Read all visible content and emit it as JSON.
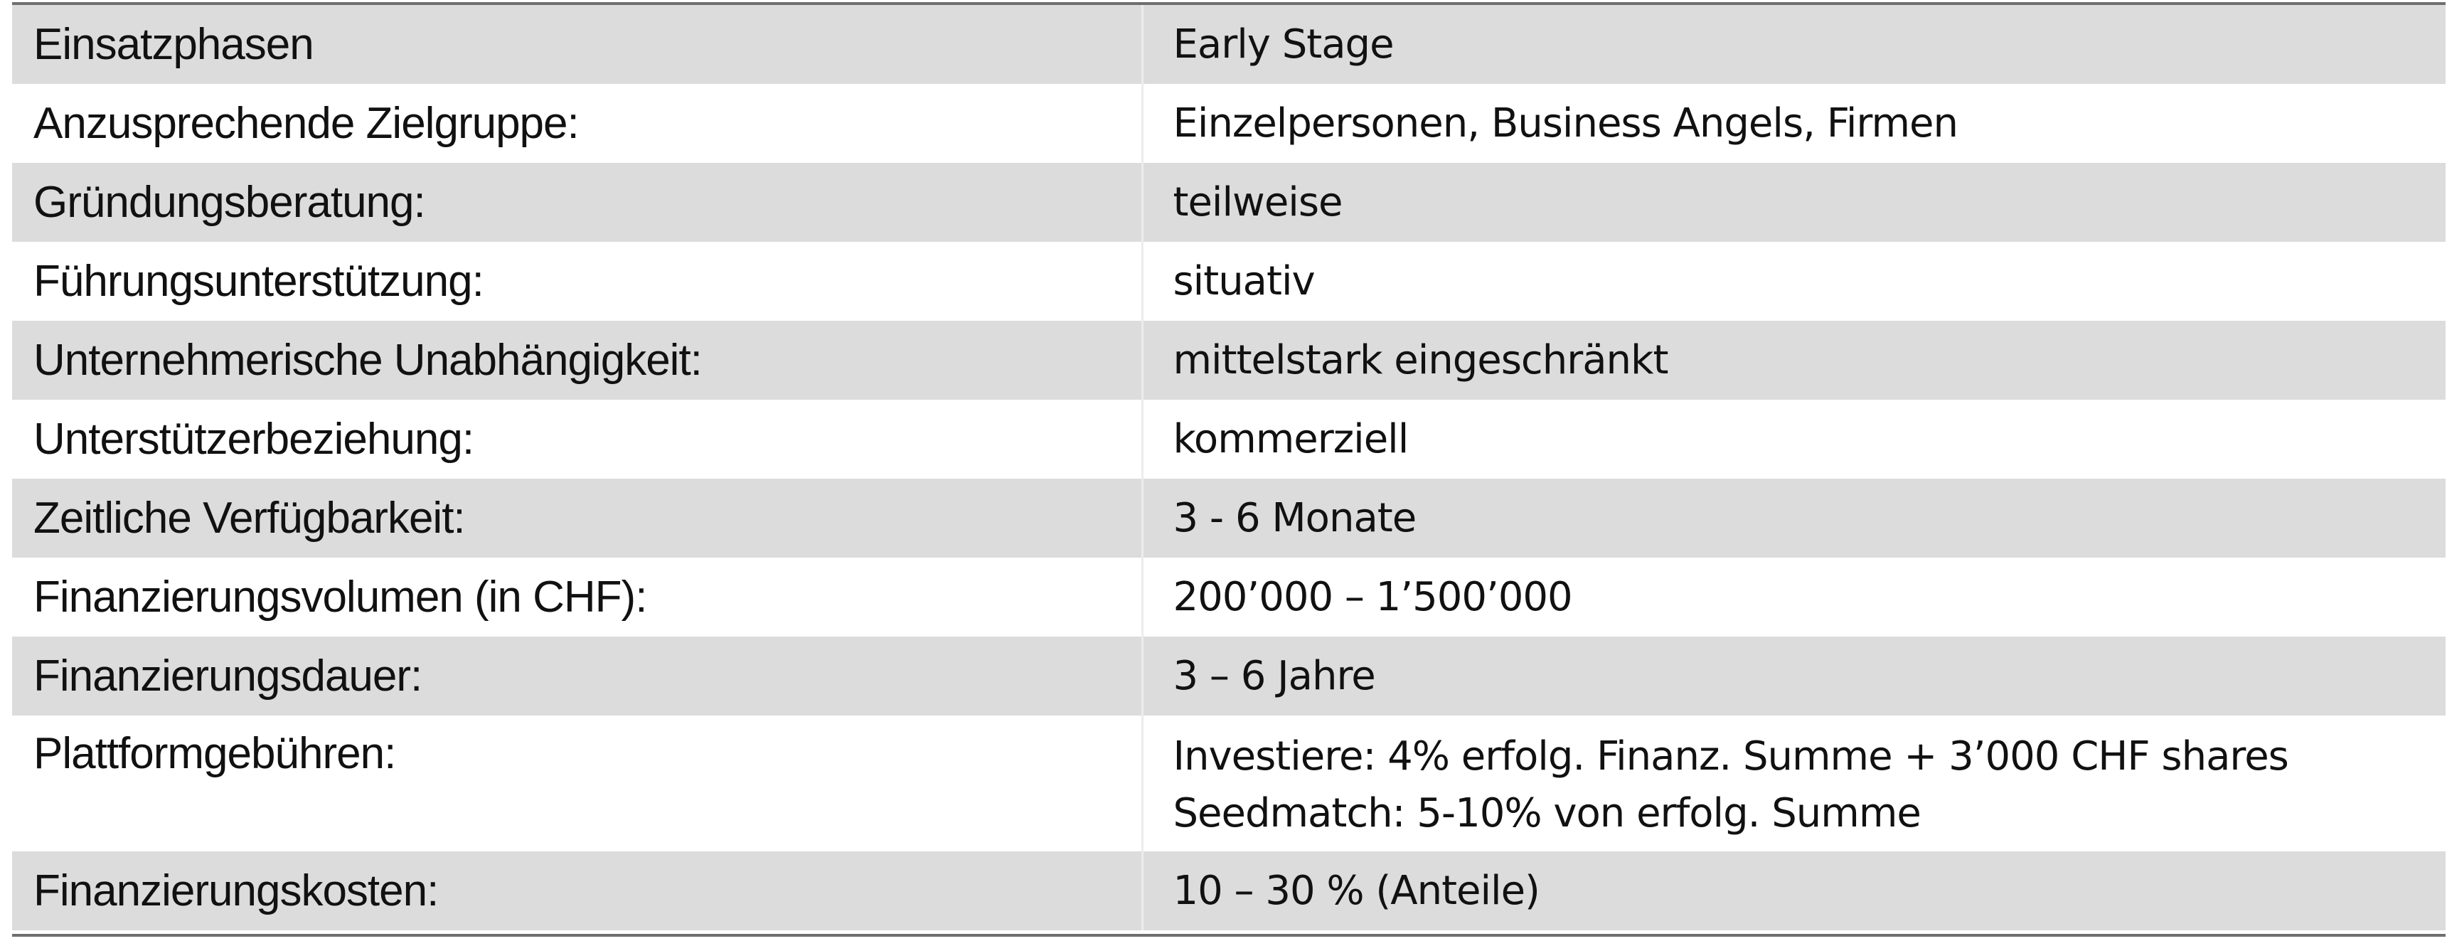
{
  "rows": [
    {
      "label": "Einsatzphasen",
      "value": "Early Stage"
    },
    {
      "label": "Anzusprechende Zielgruppe:",
      "value": "Einzelpersonen, Business Angels, Firmen"
    },
    {
      "label": "Gründungsberatung:",
      "value": "teilweise"
    },
    {
      "label": "Führungsunterstützung:",
      "value": "situativ"
    },
    {
      "label": "Unternehmerische Unabhängigkeit:",
      "value": "mittelstark eingeschränkt"
    },
    {
      "label": "Unterstützerbeziehung:",
      "value": "kommerziell"
    },
    {
      "label": "Zeitliche Verfügbarkeit:",
      "value": "3 - 6 Monate"
    },
    {
      "label": "Finanzierungsvolumen (in CHF):",
      "value": "200’000 – 1’500’000"
    },
    {
      "label": "Finanzierungsdauer:",
      "value": "3 – 6 Jahre"
    },
    {
      "label": "Plattformgebühren:",
      "value_lines": [
        "Investiere: 4%  erfolg. Finanz. Summe + 3’000 CHF shares",
        "Seedmatch: 5-10% von erfolg. Summe"
      ]
    },
    {
      "label": "Finanzierungskosten:",
      "value": "10 – 30 % (Anteile)"
    }
  ]
}
